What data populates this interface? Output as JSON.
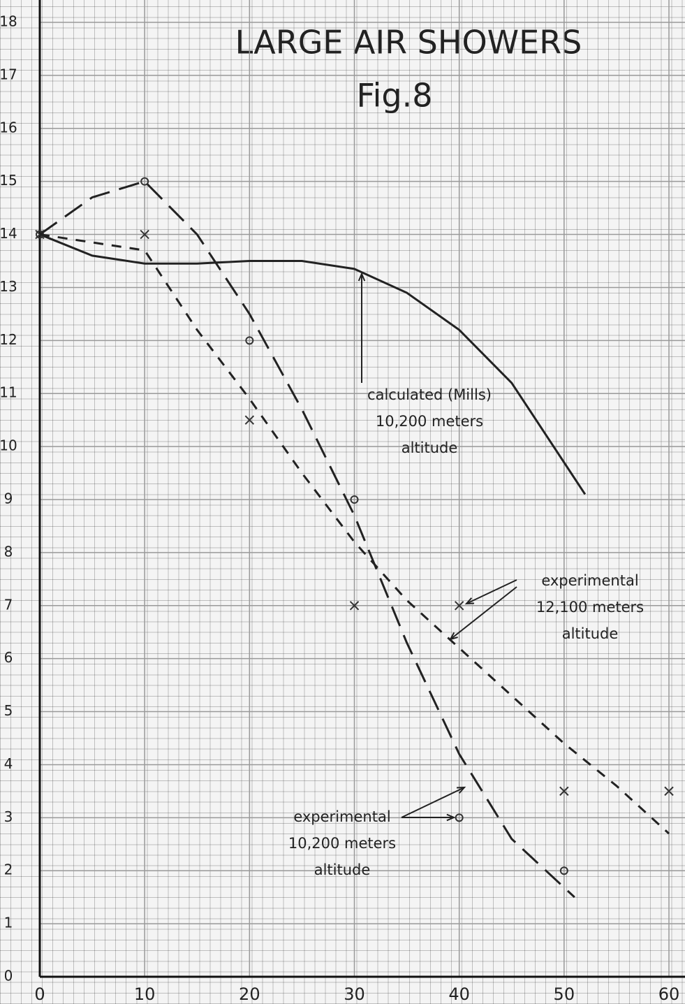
{
  "chart_data": {
    "type": "line",
    "title": "LARGE AIR SHOWERS",
    "subtitle": "Fig.8",
    "xlim": [
      0,
      60
    ],
    "ylim": [
      0,
      18
    ],
    "xticks": [
      0,
      10,
      20,
      30,
      40,
      50,
      60
    ],
    "yticks": [
      0,
      1,
      2,
      3,
      4,
      5,
      6,
      7,
      8,
      9,
      10,
      11,
      12,
      13,
      14,
      15,
      16,
      17,
      18
    ],
    "grid": true,
    "color": "#222222",
    "series": [
      {
        "style": "solid",
        "color": "#222222",
        "x": [
          0,
          5,
          10,
          15,
          20,
          25,
          30,
          35,
          40,
          45,
          50,
          52
        ],
        "values": [
          14,
          13.6,
          13.45,
          13.45,
          13.5,
          13.5,
          13.35,
          12.9,
          12.2,
          11.2,
          9.7,
          9.1
        ]
      },
      {
        "style": "points",
        "marker": "circle",
        "color": "#333333",
        "x": [
          0,
          10,
          20,
          30,
          40,
          50
        ],
        "values": [
          14,
          15,
          12,
          9,
          3,
          2
        ]
      },
      {
        "style": "points",
        "marker": "cross",
        "color": "#333333",
        "x": [
          0,
          10,
          20,
          30,
          40,
          50,
          60
        ],
        "values": [
          14,
          14,
          10.5,
          7,
          7,
          3.5,
          3.5
        ]
      },
      {
        "style": "long-dash",
        "color": "#222222",
        "x": [
          0,
          5,
          10,
          15,
          20,
          25,
          30,
          35,
          40,
          45,
          51
        ],
        "values": [
          14,
          14.7,
          15,
          14,
          12.5,
          10.7,
          8.7,
          6.3,
          4.2,
          2.6,
          1.5
        ]
      },
      {
        "style": "short-dash",
        "color": "#222222",
        "x": [
          0,
          10,
          15,
          20,
          25,
          30,
          35,
          40,
          45,
          50,
          55,
          60
        ],
        "values": [
          14,
          13.7,
          12.2,
          10.9,
          9.5,
          8.2,
          7.1,
          6.2,
          5.3,
          4.4,
          3.6,
          2.7
        ]
      }
    ],
    "annotations": [
      {
        "text": [
          "calculated (Mills)",
          "10,200 meters",
          "altitude"
        ]
      },
      {
        "text": [
          "experimental",
          "12,100 meters",
          "altitude"
        ]
      },
      {
        "text": [
          "experimental",
          "10,200 meters",
          "altitude"
        ]
      }
    ]
  }
}
